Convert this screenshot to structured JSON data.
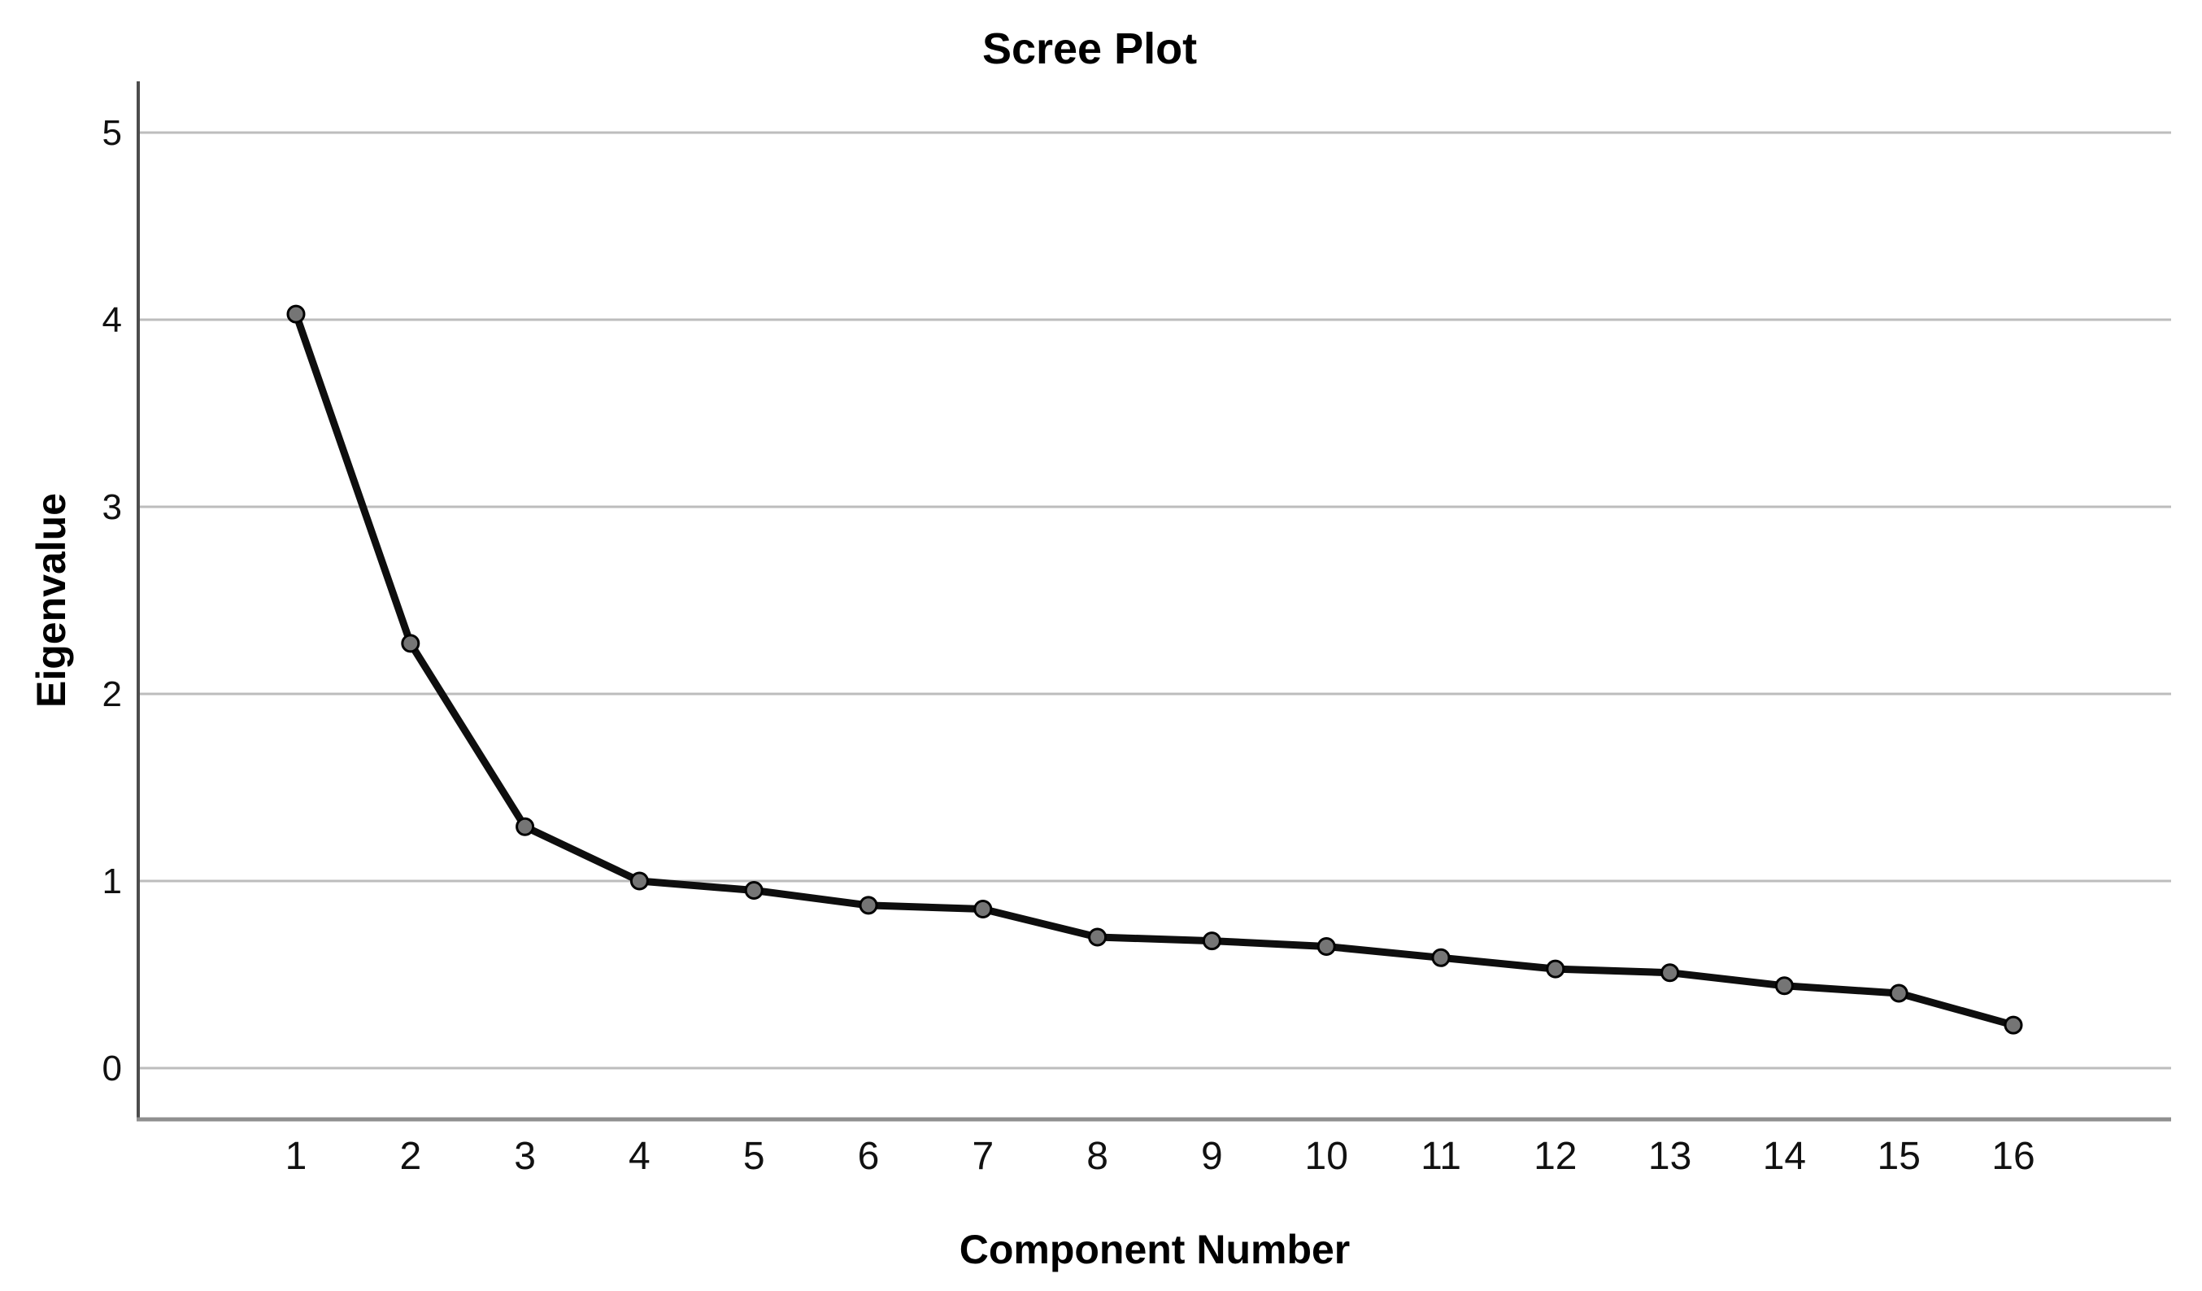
{
  "page": {
    "background": "#ffffff"
  },
  "chart_data": {
    "type": "line",
    "title": "Scree Plot",
    "xlabel": "Component Number",
    "ylabel": "Eigenvalue",
    "categories": [
      1,
      2,
      3,
      4,
      5,
      6,
      7,
      8,
      9,
      10,
      11,
      12,
      13,
      14,
      15,
      16
    ],
    "values": [
      4.03,
      2.27,
      1.29,
      1.0,
      0.95,
      0.87,
      0.85,
      0.7,
      0.68,
      0.65,
      0.59,
      0.53,
      0.51,
      0.44,
      0.4,
      0.23
    ],
    "y_ticks": [
      0,
      1,
      2,
      3,
      4,
      5
    ],
    "ylim": [
      0,
      5
    ],
    "grid": "horizontal-only",
    "legend": "none",
    "marker": "circle",
    "style": {
      "line_color": "#0e0e0e",
      "marker_fill": "#757575",
      "marker_stroke": "#000000",
      "gridline_color": "#bdbdbd",
      "y_axis_color": "#4d4d4d",
      "x_axis_color": "#8f8f8f",
      "text_color": "#000000",
      "background": "#ffffff"
    }
  }
}
